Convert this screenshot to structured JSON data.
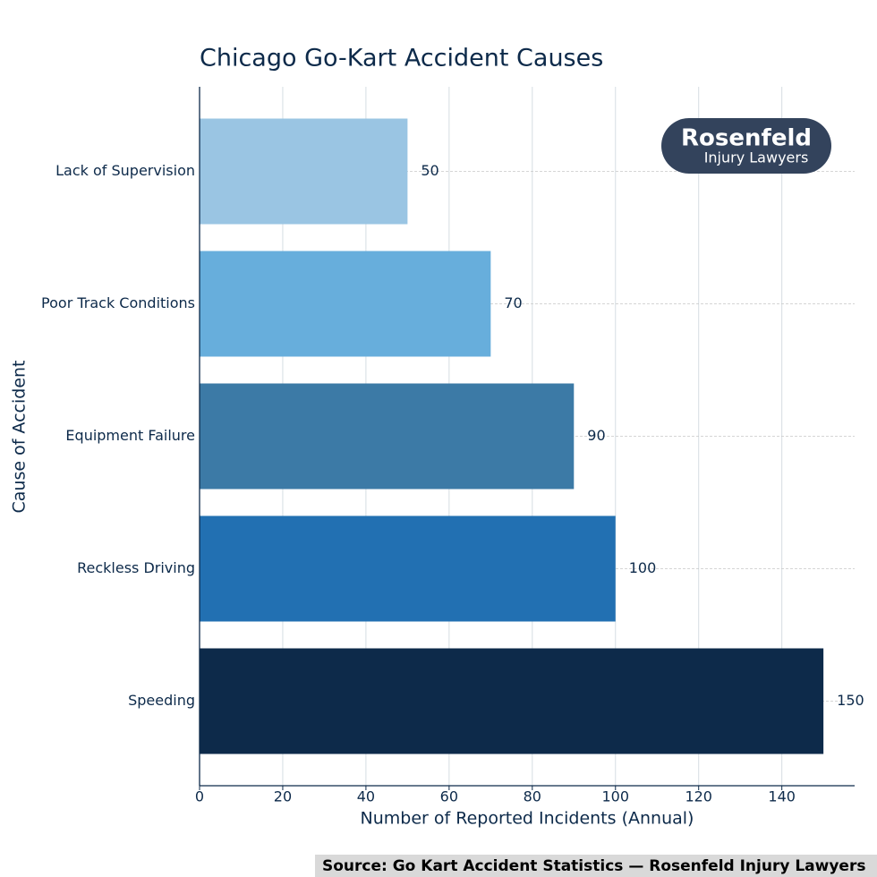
{
  "chart_data": {
    "type": "barh",
    "title": "Chicago Go-Kart Accident Causes",
    "xlabel": "Number of Reported Incidents (Annual)",
    "ylabel": "Cause of Accident",
    "categories": [
      "Lack of Supervision",
      "Poor Track Conditions",
      "Equipment Failure",
      "Reckless Driving",
      "Speeding"
    ],
    "values": [
      50,
      70,
      90,
      100,
      150
    ],
    "colors": [
      "#9ac5e3",
      "#67aedc",
      "#3c7aa6",
      "#2270b2",
      "#0d2a4a"
    ],
    "xlim": [
      0,
      157.5
    ],
    "xticks": [
      0,
      20,
      40,
      60,
      80,
      100,
      120,
      140
    ],
    "grid": true,
    "logo": {
      "name": "Rosenfeld",
      "tagline": "Injury Lawyers"
    },
    "source": "Source: Go Kart Accident Statistics — Rosenfeld Injury Lawyers"
  }
}
